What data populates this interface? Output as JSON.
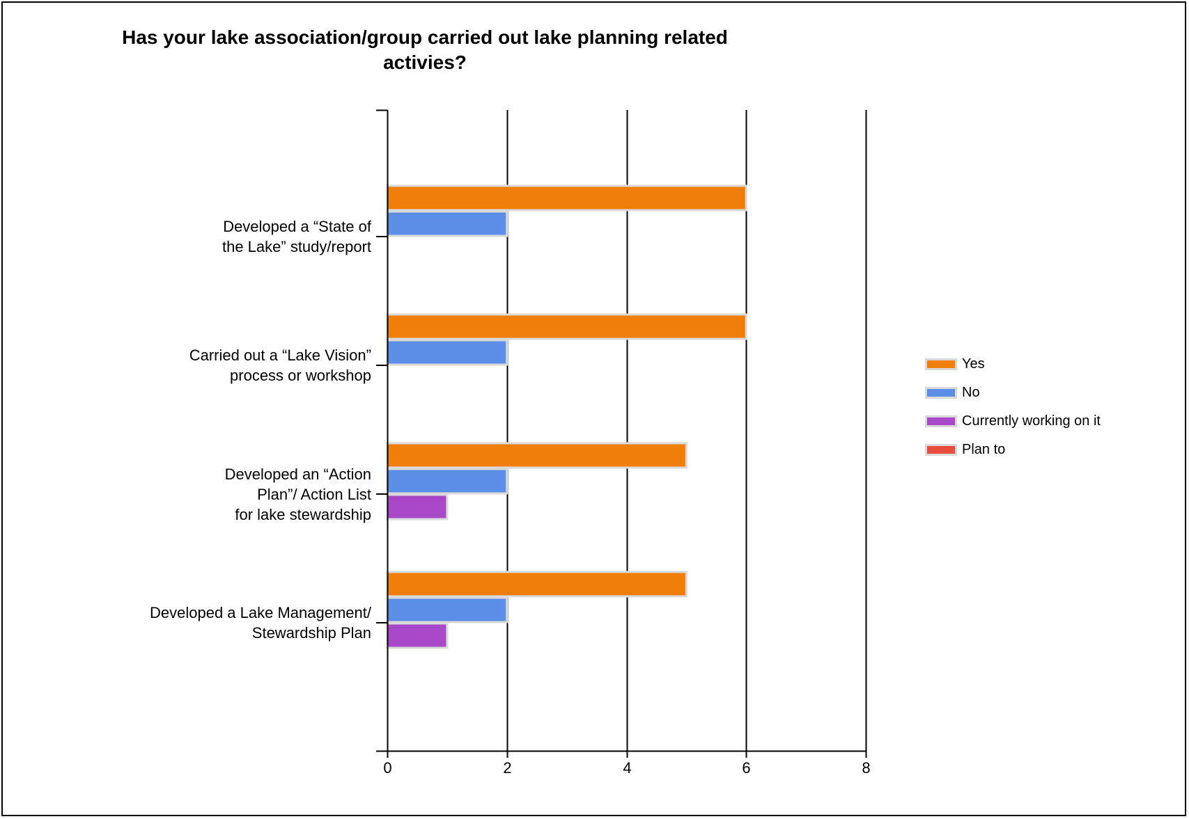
{
  "chart_data": {
    "type": "bar",
    "orientation": "horizontal",
    "title_lines": [
      "Has your lake association/group carried out lake planning related",
      "activies?"
    ],
    "categories": [
      [
        "Developed a “State of",
        "the Lake” study/report"
      ],
      [
        "Carried out a “Lake Vision”",
        "process or workshop"
      ],
      [
        "Developed an “Action",
        "Plan”/ Action List",
        "for lake stewardship"
      ],
      [
        "Developed a Lake Management/",
        "Stewardship Plan"
      ]
    ],
    "series": [
      {
        "name": "Yes",
        "color": "#f07f09",
        "values": [
          6,
          6,
          5,
          5
        ]
      },
      {
        "name": "No",
        "color": "#5b8ee6",
        "values": [
          2,
          2,
          2,
          2
        ]
      },
      {
        "name": "Currently working on it",
        "color": "#a848c8",
        "values": [
          0,
          0,
          1,
          1
        ]
      },
      {
        "name": "Plan to",
        "color": "#e84c3d",
        "values": [
          0,
          0,
          0,
          0
        ]
      }
    ],
    "xlim": [
      0,
      8
    ],
    "xticks": [
      0,
      2,
      4,
      6,
      8
    ],
    "grid": true,
    "legend_position": "right"
  }
}
